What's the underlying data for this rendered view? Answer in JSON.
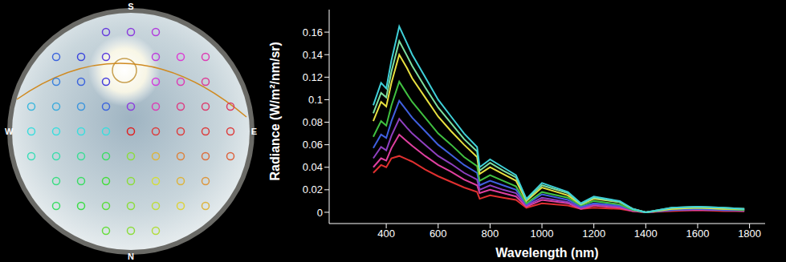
{
  "sky_panel": {
    "compass": {
      "top": "S",
      "left": "W",
      "right": "E",
      "bottom": "N"
    }
  },
  "chart_data": {
    "type": "line",
    "x_label": "Wavelength (nm)",
    "y_label": "Radiance (W/m²/nm/sr)",
    "xlim": [
      180,
      1860
    ],
    "xticks": [
      400,
      600,
      800,
      1000,
      1200,
      1400,
      1600,
      1800
    ],
    "ylim": [
      -0.01,
      0.18
    ],
    "yticks": [
      0,
      0.02,
      0.04,
      0.06,
      0.08,
      0.1,
      0.12,
      0.14,
      0.16
    ],
    "grid": false,
    "x": [
      350,
      380,
      400,
      420,
      450,
      480,
      500,
      550,
      600,
      650,
      700,
      750,
      760,
      800,
      850,
      900,
      940,
      1000,
      1100,
      1150,
      1200,
      1300,
      1350,
      1400,
      1500,
      1600,
      1700,
      1780
    ],
    "series": [
      {
        "color": "#e03030",
        "values": [
          0.035,
          0.042,
          0.04,
          0.048,
          0.05,
          0.047,
          0.045,
          0.038,
          0.032,
          0.027,
          0.022,
          0.018,
          0.012,
          0.015,
          0.013,
          0.011,
          0.004,
          0.008,
          0.006,
          0.003,
          0.004,
          0.003,
          0.001,
          0,
          0.001,
          0.002,
          0.001,
          0.001
        ]
      },
      {
        "color": "#e040a0",
        "values": [
          0.04,
          0.048,
          0.046,
          0.057,
          0.069,
          0.063,
          0.059,
          0.05,
          0.042,
          0.036,
          0.029,
          0.024,
          0.017,
          0.02,
          0.017,
          0.014,
          0.005,
          0.011,
          0.008,
          0.003,
          0.006,
          0.004,
          0.001,
          0,
          0.002,
          0.002,
          0.002,
          0.001
        ]
      },
      {
        "color": "#9040c0",
        "values": [
          0.048,
          0.058,
          0.055,
          0.068,
          0.083,
          0.075,
          0.07,
          0.06,
          0.05,
          0.043,
          0.035,
          0.029,
          0.02,
          0.024,
          0.02,
          0.017,
          0.006,
          0.013,
          0.009,
          0.004,
          0.007,
          0.005,
          0.002,
          0,
          0.002,
          0.003,
          0.002,
          0.002
        ]
      },
      {
        "color": "#4060e0",
        "values": [
          0.057,
          0.069,
          0.066,
          0.081,
          0.099,
          0.09,
          0.084,
          0.072,
          0.06,
          0.051,
          0.042,
          0.035,
          0.024,
          0.028,
          0.024,
          0.02,
          0.007,
          0.016,
          0.011,
          0.005,
          0.008,
          0.006,
          0.002,
          0,
          0.002,
          0.003,
          0.002,
          0.002
        ]
      },
      {
        "color": "#40c040",
        "values": [
          0.067,
          0.081,
          0.077,
          0.095,
          0.116,
          0.105,
          0.098,
          0.084,
          0.07,
          0.06,
          0.049,
          0.041,
          0.028,
          0.033,
          0.028,
          0.023,
          0.008,
          0.018,
          0.013,
          0.006,
          0.01,
          0.007,
          0.002,
          0,
          0.003,
          0.004,
          0.003,
          0.002
        ]
      },
      {
        "color": "#e8e040",
        "values": [
          0.081,
          0.098,
          0.094,
          0.115,
          0.14,
          0.128,
          0.119,
          0.102,
          0.085,
          0.072,
          0.06,
          0.049,
          0.034,
          0.04,
          0.034,
          0.028,
          0.01,
          0.022,
          0.015,
          0.007,
          0.012,
          0.009,
          0.003,
          0,
          0.003,
          0.004,
          0.003,
          0.003
        ]
      },
      {
        "color": "#7de0a0",
        "values": [
          0.088,
          0.106,
          0.102,
          0.125,
          0.152,
          0.139,
          0.13,
          0.111,
          0.093,
          0.079,
          0.065,
          0.054,
          0.037,
          0.044,
          0.037,
          0.031,
          0.011,
          0.024,
          0.017,
          0.007,
          0.013,
          0.009,
          0.003,
          0,
          0.004,
          0.005,
          0.004,
          0.003
        ]
      },
      {
        "color": "#3fd0d8",
        "values": [
          0.095,
          0.115,
          0.11,
          0.135,
          0.165,
          0.15,
          0.14,
          0.12,
          0.1,
          0.085,
          0.07,
          0.058,
          0.04,
          0.047,
          0.04,
          0.033,
          0.012,
          0.026,
          0.018,
          0.008,
          0.014,
          0.01,
          0.003,
          0,
          0.004,
          0.005,
          0.004,
          0.003
        ]
      }
    ]
  }
}
